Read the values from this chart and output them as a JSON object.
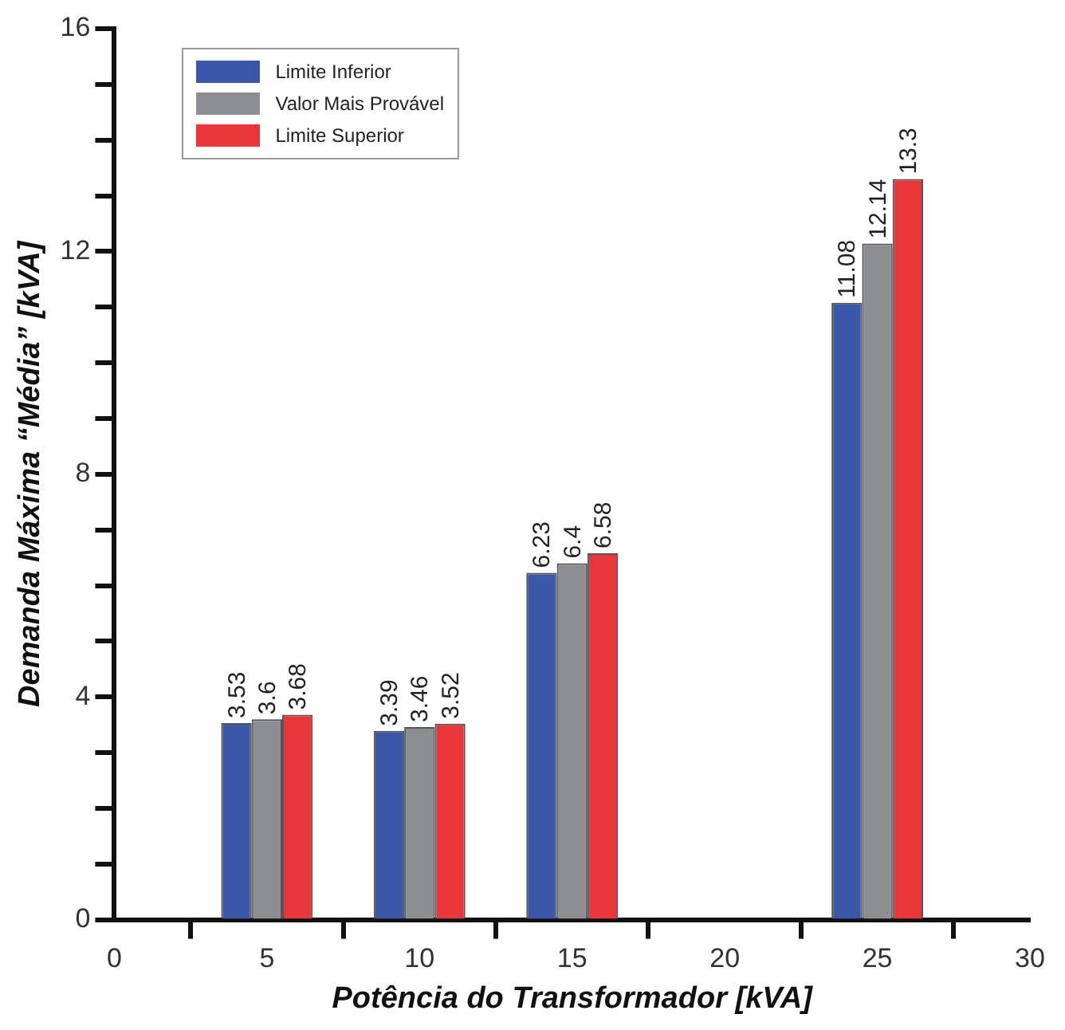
{
  "chart_data": {
    "type": "bar",
    "xlabel": "Potência do Transformador [kVA]",
    "ylabel": "Demanda Máxima “Média” [kVA]",
    "x": [
      5,
      10,
      15,
      25
    ],
    "series": [
      {
        "name": "Limite Inferior",
        "color": "#3a57a8",
        "values": [
          3.53,
          3.39,
          6.23,
          11.08
        ]
      },
      {
        "name": "Valor Mais Provável",
        "color": "#8c8e92",
        "values": [
          3.6,
          3.46,
          6.4,
          12.14
        ]
      },
      {
        "name": "Limite Superior",
        "color": "#e8363b",
        "values": [
          3.68,
          3.52,
          6.58,
          13.3
        ]
      }
    ],
    "xlim": [
      0,
      30
    ],
    "xticks": [
      0,
      5,
      10,
      15,
      20,
      25,
      30
    ],
    "ylim": [
      0,
      16
    ],
    "yticks": [
      0,
      {
        "value": 1,
        "label": null
      },
      {
        "value": 2,
        "label": null
      },
      {
        "value": 3,
        "label": null
      },
      4,
      {
        "value": 5,
        "label": null
      },
      {
        "value": 6,
        "label": null
      },
      {
        "value": 7,
        "label": null
      },
      8,
      {
        "value": 9,
        "label": null
      },
      {
        "value": 10,
        "label": null
      },
      {
        "value": 11,
        "label": null
      },
      12,
      {
        "value": 13,
        "label": null
      },
      {
        "value": 14,
        "label": null
      },
      {
        "value": 15,
        "label": null
      },
      16
    ],
    "grid": false,
    "legend": "top left",
    "data_labels": true
  }
}
